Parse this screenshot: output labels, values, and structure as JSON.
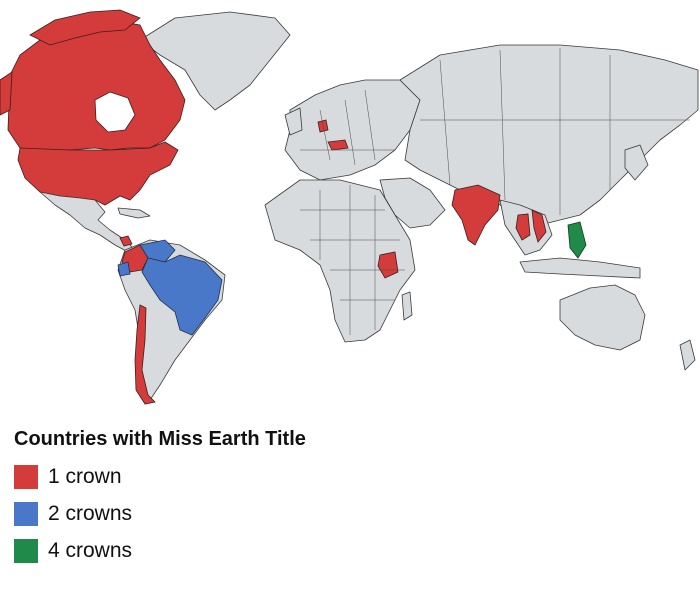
{
  "legend": {
    "title": "Countries with Miss Earth Title",
    "items": [
      {
        "label": "1 crown",
        "color": "#d43b3b",
        "crowns": 1
      },
      {
        "label": "2 crowns",
        "color": "#4a78c8",
        "crowns": 2
      },
      {
        "label": "4 crowns",
        "color": "#1f8a4a",
        "crowns": 4
      }
    ]
  },
  "highlighted_countries": {
    "1 crown": [
      "Canada",
      "United States",
      "Denmark",
      "Czech Republic",
      "India",
      "Thailand",
      "Vietnam",
      "Kenya",
      "Chile",
      "Colombia"
    ],
    "2 crowns": [
      "Brazil",
      "Venezuela",
      "Ecuador"
    ],
    "4 crowns": [
      "Philippines"
    ]
  },
  "base_land_color": "#d7dbde",
  "ocean_color": "#ffffff"
}
